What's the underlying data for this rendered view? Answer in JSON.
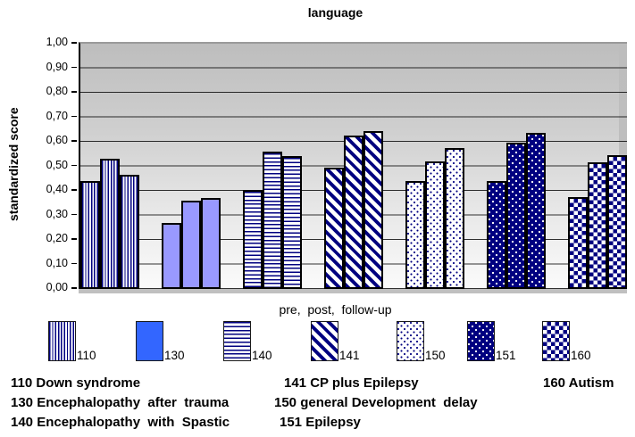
{
  "title": "language",
  "y_axis": {
    "label": "standardized score",
    "ticks": [
      "1,00",
      "0,90",
      "0,80",
      "0,70",
      "0,60",
      "0,50",
      "0,40",
      "0,30",
      "0,20",
      "0,10",
      "0,00"
    ]
  },
  "x_axis": {
    "label": "pre,  post,  follow-up"
  },
  "legend": {
    "items": [
      "110",
      "130",
      "140",
      "141",
      "150",
      "151",
      "160"
    ]
  },
  "footnotes": {
    "col1": [
      "110 Down syndrome",
      "130 Encephalopathy  after  trauma",
      "140 Encephalopathy  with  Spastic"
    ],
    "col2": [
      "141 CP plus Epilepsy",
      "150 general Development  delay",
      "151 Epilepsy"
    ],
    "col3": [
      "160 Autism"
    ]
  },
  "colors": {
    "pattern_navy": "#000080",
    "solid_bar_130": "#9999ff",
    "legend_swatch_130": "#3366ff",
    "plot_bg_top": "#bdbdbd",
    "plot_bg_bottom": "#fbfbfb",
    "floor_gray": "#c0c0c0"
  },
  "chart_data": {
    "type": "bar",
    "title": "language",
    "xlabel": "pre, post, follow-up",
    "ylabel": "standardized score",
    "ylim": [
      0,
      1.0
    ],
    "ytick_step": 0.1,
    "grid": true,
    "legend_position": "bottom",
    "categories": [
      "pre",
      "post",
      "follow-up"
    ],
    "series": [
      {
        "name": "110",
        "label": "Down syndrome",
        "pattern": "vertical-stripes",
        "values": [
          0.44,
          0.53,
          0.465
        ]
      },
      {
        "name": "130",
        "label": "Encephalopathy after trauma",
        "pattern": "solid",
        "values": [
          0.27,
          0.36,
          0.37
        ]
      },
      {
        "name": "140",
        "label": "Encephalopathy with Spastic",
        "pattern": "horizontal-stripes",
        "values": [
          0.405,
          0.56,
          0.54
        ]
      },
      {
        "name": "141",
        "label": "CP plus Epilepsy",
        "pattern": "diagonal-stripes",
        "values": [
          0.495,
          0.625,
          0.645
        ]
      },
      {
        "name": "150",
        "label": "general Development delay",
        "pattern": "navy-dots-on-white",
        "values": [
          0.44,
          0.52,
          0.575
        ]
      },
      {
        "name": "151",
        "label": "Epilepsy",
        "pattern": "white-dots-on-navy",
        "values": [
          0.44,
          0.595,
          0.635
        ]
      },
      {
        "name": "160",
        "label": "Autism",
        "pattern": "checkerboard",
        "values": [
          0.375,
          0.515,
          0.545
        ]
      }
    ]
  }
}
